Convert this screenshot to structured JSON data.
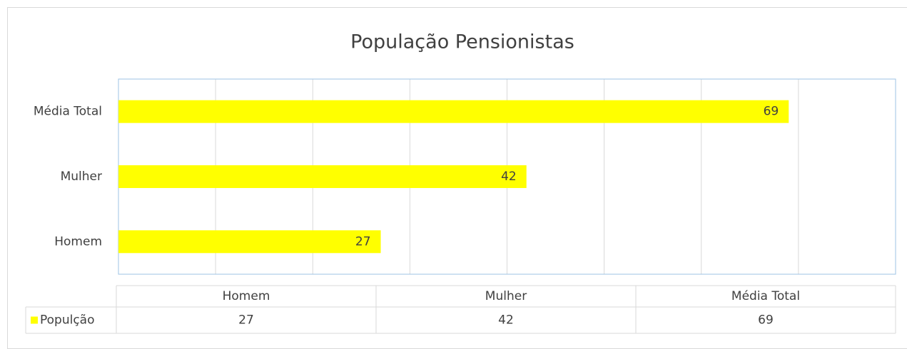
{
  "chart_data": {
    "type": "barh",
    "title": "População Pensionistas",
    "categories": [
      "Homem",
      "Mulher",
      "Média Total"
    ],
    "series": [
      {
        "name": "Populção",
        "color": "#ffff00",
        "values": [
          27,
          42,
          69
        ]
      }
    ],
    "xlim": [
      0,
      80
    ],
    "xticks": [
      0,
      10,
      20,
      30,
      40,
      50,
      60,
      70,
      80
    ],
    "grid": true,
    "data_table": true
  }
}
